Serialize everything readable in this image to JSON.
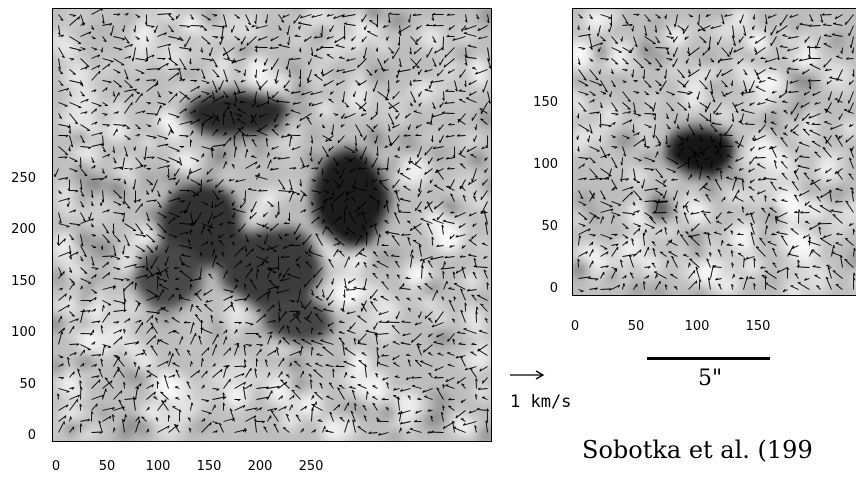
{
  "left_panel": {
    "y_ticks": [
      "0",
      "50",
      "100",
      "150",
      "200",
      "250"
    ],
    "x_ticks": [
      "0",
      "50",
      "100",
      "150",
      "200",
      "250"
    ]
  },
  "right_panel": {
    "y_ticks": [
      "0",
      "50",
      "100",
      "150"
    ],
    "x_ticks": [
      "0",
      "50",
      "100",
      "150"
    ]
  },
  "scale_bar": {
    "label": "5\""
  },
  "legend": {
    "label": "1 km/s"
  },
  "citation": "Sobotka et al. (199"
}
